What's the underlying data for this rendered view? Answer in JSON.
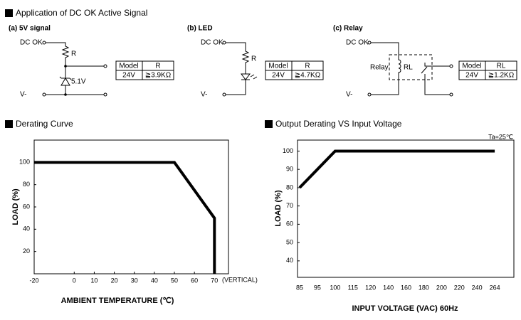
{
  "header": {
    "title": "Application of DC OK Active Signal"
  },
  "circuits": [
    {
      "label": "(a) 5V signal",
      "dc_ok": "DC OK",
      "resistor": "R",
      "zener": "5.1V",
      "ground": "V-",
      "table": {
        "header": [
          "Model",
          "R"
        ],
        "row": [
          "24V",
          "≧3.9KΩ"
        ]
      }
    },
    {
      "label": "(b) LED",
      "dc_ok": "DC OK",
      "resistor": "R",
      "ground": "V-",
      "table": {
        "header": [
          "Model",
          "R"
        ],
        "row": [
          "24V",
          "≧4.7KΩ"
        ]
      }
    },
    {
      "label": "(c) Relay",
      "dc_ok": "DC OK",
      "relay": "Relay",
      "coil": "RL",
      "ground": "V-",
      "table": {
        "header": [
          "Model",
          "RL"
        ],
        "row": [
          "24V",
          "≧1.2KΩ"
        ]
      }
    }
  ],
  "chart_data": [
    {
      "type": "line",
      "title": "Derating Curve",
      "annotation": "(VERTICAL)",
      "x": [
        -20,
        50,
        70,
        70
      ],
      "values": [
        100,
        100,
        50,
        0
      ],
      "color": "#000000",
      "xlim": [
        -20,
        77
      ],
      "xticks": [
        -20,
        0,
        10,
        20,
        30,
        40,
        50,
        60,
        70
      ],
      "ylim": [
        0,
        120
      ],
      "yticks": [
        20,
        40,
        60,
        80,
        100
      ],
      "xlabel": "AMBIENT TEMPERATURE (℃)",
      "ylabel": "LOAD (%)"
    },
    {
      "type": "line",
      "title": "Output Derating VS Input Voltage",
      "annotation": "Ta=25℃",
      "categories": [
        "85",
        "95",
        "100",
        "115",
        "120",
        "140",
        "160",
        "180",
        "200",
        "220",
        "240",
        "264"
      ],
      "values": [
        80,
        90,
        100,
        100,
        100,
        100,
        100,
        100,
        100,
        100,
        100,
        100
      ],
      "color": "#000000",
      "ylim": [
        31,
        106
      ],
      "yticks": [
        40,
        50,
        60,
        70,
        80,
        90,
        100
      ],
      "xlabel": "INPUT VOLTAGE (VAC) 60Hz",
      "ylabel": "LOAD (%)"
    }
  ]
}
